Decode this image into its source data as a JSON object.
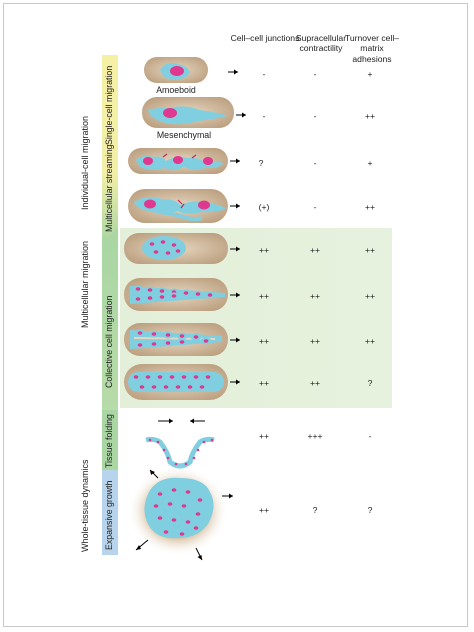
{
  "columns": [
    {
      "label": "Cell–cell junctions"
    },
    {
      "label": "Supracellular contractility"
    },
    {
      "label": "Turnover cell–matrix adhesions"
    }
  ],
  "groups": {
    "individual": "Individual-cell migration",
    "multicellular": "Multicellular migration",
    "whole_tissue": "Whole-tissue dynamics"
  },
  "bands": {
    "single_cell": "Single-cell migration",
    "streaming": "Multicellular streaming",
    "collective": "Collective cell migration",
    "folding": "Tissue folding",
    "expansive": "Expansive growth"
  },
  "panel_labels": {
    "amoeboid": "Amoeboid",
    "mesenchymal": "Mesenchymal"
  },
  "rows": [
    {
      "values": [
        "-",
        "-",
        "+"
      ]
    },
    {
      "values": [
        "-",
        "-",
        "++"
      ]
    },
    {
      "values": [
        "?",
        "-",
        "+"
      ]
    },
    {
      "values": [
        "(+)",
        "-",
        "++"
      ]
    },
    {
      "values": [
        "++",
        "++",
        "++"
      ]
    },
    {
      "values": [
        "++",
        "++",
        "++"
      ]
    },
    {
      "values": [
        "++",
        "++",
        "++"
      ]
    },
    {
      "values": [
        "++",
        "++",
        "?"
      ]
    },
    {
      "values": [
        "++",
        "+++",
        "-"
      ]
    },
    {
      "values": [
        "++",
        "?",
        "?"
      ]
    }
  ],
  "colors": {
    "yellow_band": "#f6f0a6",
    "green_band": "#a9d6a3",
    "blue_band": "#b7d4ec",
    "matrix": "#c9ae8d",
    "cell": "#7fcfe0",
    "nucleus": "#e0378f",
    "highlight": "#e3efd9"
  }
}
